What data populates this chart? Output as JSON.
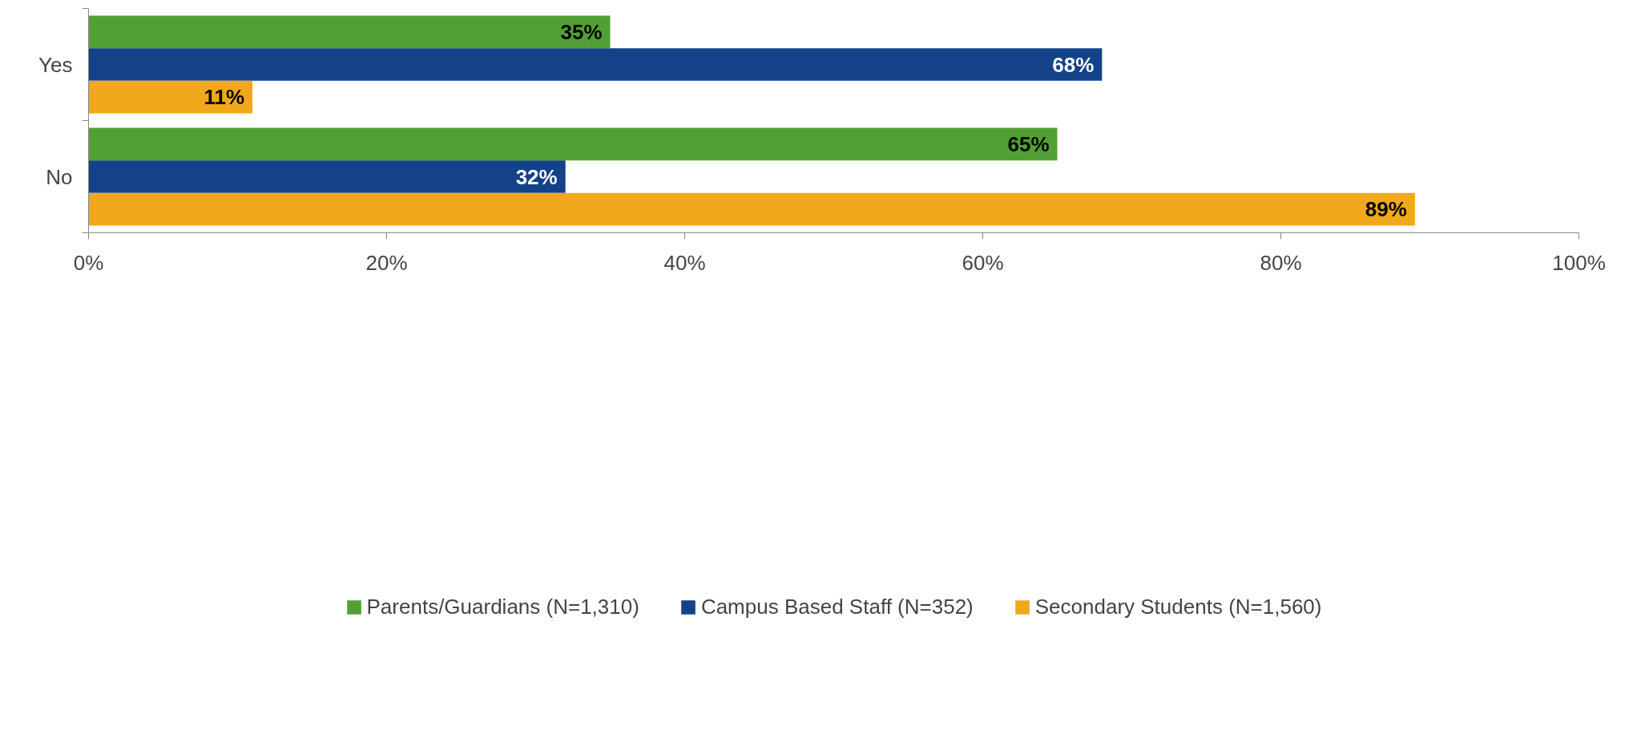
{
  "chart_data": {
    "type": "bar",
    "orientation": "horizontal",
    "categories": [
      "Yes",
      "No"
    ],
    "series": [
      {
        "name": "Parents/Guardians (N=1,310)",
        "color": "#52a035",
        "values": [
          35,
          65
        ],
        "value_labels": [
          "35%",
          "65%"
        ]
      },
      {
        "name": "Campus Based Staff (N=352)",
        "color": "#134289",
        "values": [
          68,
          32
        ],
        "value_labels": [
          "68%",
          "32%"
        ]
      },
      {
        "name": "Secondary Students (N=1,560)",
        "color": "#f0a91c",
        "values": [
          11,
          89
        ],
        "value_labels": [
          "11%",
          "89%"
        ]
      }
    ],
    "xlim": [
      0,
      100
    ],
    "xticks": [
      {
        "value": 0,
        "label": "0%"
      },
      {
        "value": 20,
        "label": "20%"
      },
      {
        "value": 40,
        "label": "40%"
      },
      {
        "value": 60,
        "label": "60%"
      },
      {
        "value": 80,
        "label": "80%"
      },
      {
        "value": 100,
        "label": "100%"
      }
    ],
    "grid": false,
    "legend": "bottom"
  }
}
